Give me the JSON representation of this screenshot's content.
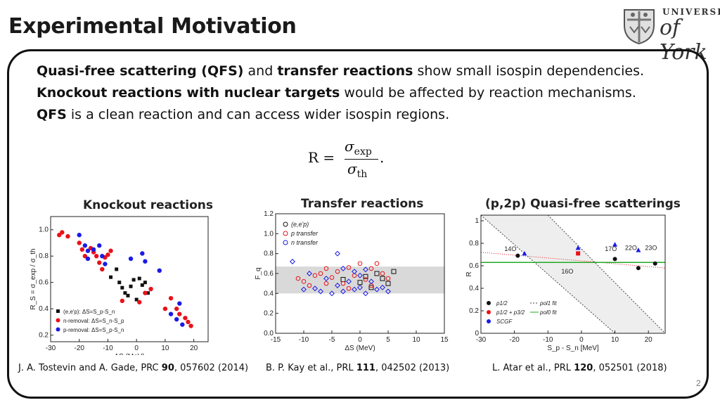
{
  "slide": {
    "title": "Experimental Motivation",
    "page_number": "2",
    "logo": {
      "line1": "UNIVERSITY",
      "line2": "of York"
    }
  },
  "bullets": [
    {
      "b1": "Quasi-free scattering (QFS)",
      "t1": "and",
      "b2": "transfer reactions",
      "t2": "show small isospin dependencies."
    },
    {
      "b1": "Knockout reactions with nuclear targets",
      "t1": "would be affected by reaction mechanisms."
    },
    {
      "b1": "QFS",
      "t1": "is a clean reaction and can access wider isospin regions."
    }
  ],
  "formula": {
    "lhs": "R =",
    "num": "σ",
    "num_sub": "exp",
    "den": "σ",
    "den_sub": "th",
    "end": "."
  },
  "captions": {
    "knockout": "Knockout reactions",
    "transfer": "Transfer reactions",
    "qfs": "(p,2p) Quasi-free scatterings"
  },
  "references": {
    "knockout": {
      "pre": "J. A. Tostevin and A. Gade, PRC ",
      "vol": "90",
      "post": ", 057602 (2014)"
    },
    "transfer": {
      "pre": "B. P. Kay et al., PRL ",
      "vol": "111",
      "post": ", 042502 (2013)"
    },
    "qfs": {
      "pre": "L. Atar et al., PRL ",
      "vol": "120",
      "post": ", 052501 (2018)"
    }
  },
  "colors": {
    "black": "#111111",
    "red": "#e8111a",
    "blue": "#1a1ae6",
    "band": "#d9d9d9",
    "green": "#22aa22"
  },
  "chart_data": [
    {
      "type": "scatter",
      "title": "Knockout reactions",
      "xlabel": "ΔS (MeV)",
      "ylabel": "R_S = σ_exp / σ_th",
      "xlim": [
        -30,
        25
      ],
      "ylim": [
        0.15,
        1.1
      ],
      "xticks": [
        "-30",
        "-20",
        "-10",
        "0",
        "10",
        "20"
      ],
      "yticks": [
        "0.2",
        "0.4",
        "0.6",
        "0.8",
        "1.0"
      ],
      "legend": [
        "(e,e'p): ΔS=S_p-S_n",
        "n-removal: ΔS=S_n-S_p",
        "p-removal: ΔS=S_p-S_n"
      ],
      "series": [
        {
          "name": "(e,e'p)",
          "color": "#111111",
          "points": [
            [
              -9,
              0.64
            ],
            [
              -7,
              0.7
            ],
            [
              -6,
              0.6
            ],
            [
              -5,
              0.56
            ],
            [
              -4,
              0.52
            ],
            [
              -3,
              0.5
            ],
            [
              -2,
              0.57
            ],
            [
              -1,
              0.62
            ],
            [
              0,
              0.47
            ],
            [
              1,
              0.63
            ],
            [
              2,
              0.58
            ],
            [
              3,
              0.6
            ],
            [
              4,
              0.52
            ]
          ]
        },
        {
          "name": "n-removal",
          "color": "#e8111a",
          "points": [
            [
              -27,
              0.96
            ],
            [
              -26,
              0.98
            ],
            [
              -24,
              0.95
            ],
            [
              -20,
              0.9
            ],
            [
              -19,
              0.85
            ],
            [
              -18,
              0.8
            ],
            [
              -16,
              0.86
            ],
            [
              -15,
              0.83
            ],
            [
              -14,
              0.8
            ],
            [
              -13,
              0.75
            ],
            [
              -12,
              0.7
            ],
            [
              -11,
              0.79
            ],
            [
              -10,
              0.81
            ],
            [
              -9,
              0.84
            ],
            [
              -5,
              0.46
            ],
            [
              1,
              0.45
            ],
            [
              3,
              0.52
            ],
            [
              5,
              0.55
            ],
            [
              10,
              0.4
            ],
            [
              12,
              0.48
            ],
            [
              14,
              0.4
            ],
            [
              15,
              0.36
            ],
            [
              17,
              0.33
            ],
            [
              18,
              0.3
            ],
            [
              19,
              0.27
            ]
          ]
        },
        {
          "name": "p-removal",
          "color": "#1a1ae6",
          "points": [
            [
              -20,
              0.96
            ],
            [
              -18,
              0.88
            ],
            [
              -17,
              0.84
            ],
            [
              -15,
              0.85
            ],
            [
              -13,
              0.88
            ],
            [
              -12,
              0.8
            ],
            [
              -11,
              0.74
            ],
            [
              -17,
              0.78
            ],
            [
              -2,
              0.78
            ],
            [
              2,
              0.82
            ],
            [
              3,
              0.76
            ],
            [
              8,
              0.69
            ],
            [
              12,
              0.36
            ],
            [
              14,
              0.32
            ],
            [
              16,
              0.28
            ],
            [
              15,
              0.44
            ]
          ]
        }
      ]
    },
    {
      "type": "scatter",
      "title": "Transfer reactions",
      "xlabel": "ΔS (MeV)",
      "ylabel": "F_q",
      "xlim": [
        -15,
        15
      ],
      "ylim": [
        0,
        1.2
      ],
      "xticks": [
        "-15",
        "-10",
        "-5",
        "0",
        "5",
        "10",
        "15"
      ],
      "yticks": [
        "0.0",
        "0.2",
        "0.4",
        "0.6",
        "0.8",
        "1.0",
        "1.2"
      ],
      "band": [
        0.4,
        0.67
      ],
      "legend": [
        "(e,e'p)",
        "p transfer",
        "n transfer"
      ],
      "series": [
        {
          "name": "(e,e'p)",
          "color": "#111111",
          "points": [
            [
              -3,
              0.54
            ],
            [
              0,
              0.51
            ],
            [
              1,
              0.57
            ],
            [
              2,
              0.46
            ],
            [
              3,
              0.6
            ],
            [
              4,
              0.55
            ],
            [
              5,
              0.5
            ],
            [
              6,
              0.62
            ]
          ]
        },
        {
          "name": "p transfer",
          "color": "#e8111a",
          "points": [
            [
              -11,
              0.55
            ],
            [
              -10,
              0.52
            ],
            [
              -9,
              0.48
            ],
            [
              -8,
              0.58
            ],
            [
              -7,
              0.6
            ],
            [
              -6,
              0.5
            ],
            [
              -5,
              0.56
            ],
            [
              -4,
              0.62
            ],
            [
              -3,
              0.5
            ],
            [
              -2,
              0.66
            ],
            [
              -1,
              0.58
            ],
            [
              0,
              0.7
            ],
            [
              1,
              0.54
            ],
            [
              2,
              0.65
            ],
            [
              3,
              0.7
            ],
            [
              4,
              0.6
            ],
            [
              5,
              0.55
            ],
            [
              -6,
              0.65
            ],
            [
              -2,
              0.45
            ],
            [
              2,
              0.48
            ]
          ]
        },
        {
          "name": "n transfer",
          "color": "#1a1ae6",
          "points": [
            [
              -12,
              0.72
            ],
            [
              -10,
              0.44
            ],
            [
              -9,
              0.6
            ],
            [
              -8,
              0.45
            ],
            [
              -7,
              0.42
            ],
            [
              -6,
              0.55
            ],
            [
              -5,
              0.4
            ],
            [
              -4,
              0.48
            ],
            [
              -3,
              0.42
            ],
            [
              -2,
              0.52
            ],
            [
              -1,
              0.44
            ],
            [
              0,
              0.46
            ],
            [
              1,
              0.4
            ],
            [
              2,
              0.52
            ],
            [
              3,
              0.44
            ],
            [
              -4,
              0.8
            ],
            [
              -3,
              0.65
            ],
            [
              -1,
              0.62
            ],
            [
              0,
              0.58
            ],
            [
              1,
              0.64
            ],
            [
              4,
              0.46
            ],
            [
              5,
              0.42
            ]
          ]
        }
      ]
    },
    {
      "type": "scatter",
      "title": "(p,2p) Quasi-free scatterings",
      "xlabel": "S_p - S_n [MeV]",
      "ylabel": "R",
      "xlim": [
        -30,
        25
      ],
      "ylim": [
        0,
        1.05
      ],
      "xticks": [
        "-30",
        "-20",
        "-10",
        "0",
        "10",
        "20"
      ],
      "yticks": [
        "0",
        "0.2",
        "0.4",
        "0.6",
        "0.8",
        "1"
      ],
      "legend": [
        "p1/2",
        "p1/2 + p3/2",
        "SCGF",
        "pol1 fit",
        "pol0 fit"
      ],
      "annotations": [
        "14O",
        "16O",
        "17O",
        "22O",
        "23O"
      ],
      "series": [
        {
          "name": "p1/2",
          "color": "#111111",
          "points": [
            [
              -19,
              0.69
            ],
            [
              10,
              0.66
            ],
            [
              17,
              0.58
            ],
            [
              22,
              0.62
            ]
          ]
        },
        {
          "name": "p1/2 + p3/2",
          "color": "#e8111a",
          "points": [
            [
              -1,
              0.71
            ]
          ]
        },
        {
          "name": "SCGF",
          "color": "#1a1ae6",
          "points": [
            [
              -17,
              0.71
            ],
            [
              -1,
              0.76
            ],
            [
              10,
              0.79
            ],
            [
              17,
              0.74
            ]
          ]
        }
      ],
      "fits": {
        "pol0": 0.63
      }
    }
  ]
}
